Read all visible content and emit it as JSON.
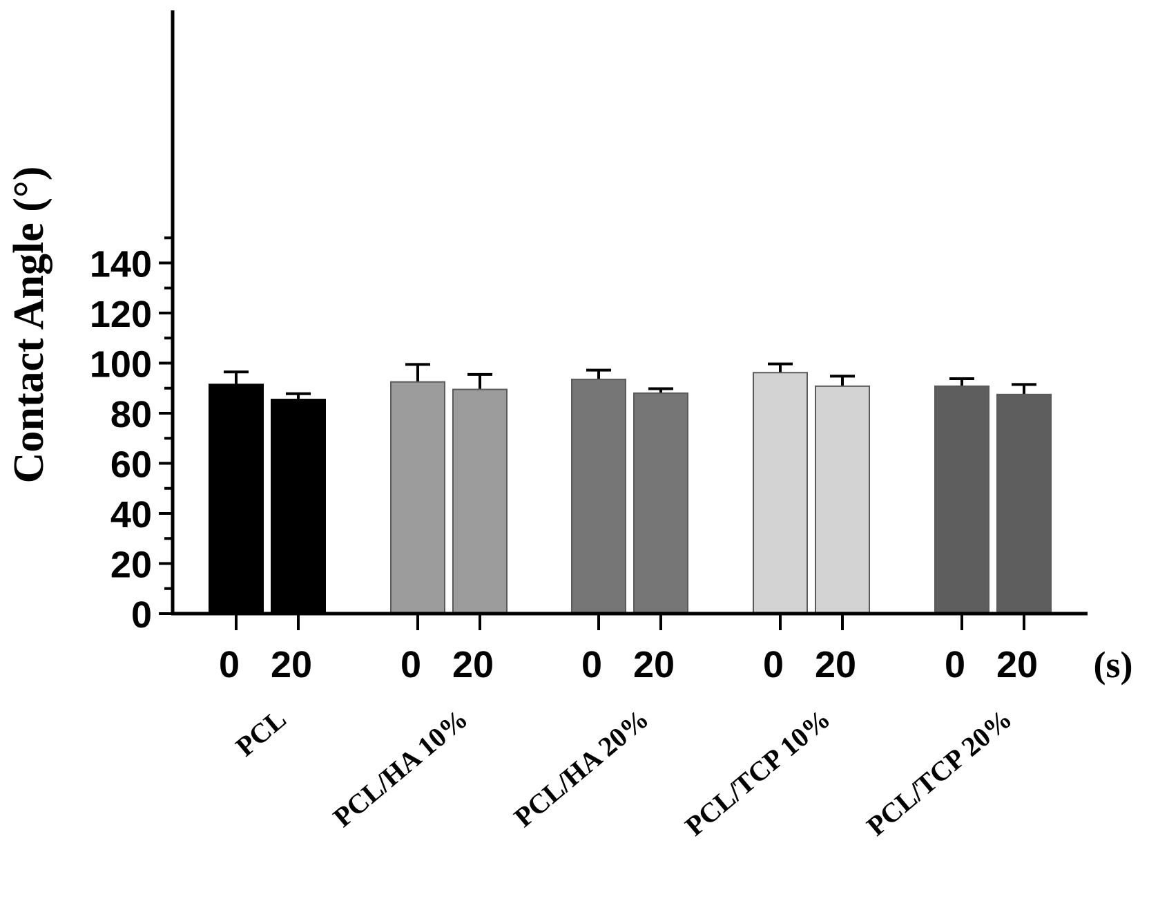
{
  "chart_data": {
    "type": "bar",
    "ylabel": "Contact Angle (°)",
    "x_unit_label": "(s)",
    "ylim": [
      0,
      150
    ],
    "yticks": [
      0,
      20,
      40,
      60,
      80,
      100,
      120,
      140
    ],
    "time_labels": [
      "0",
      "20"
    ],
    "groups": [
      {
        "name": "PCL",
        "color": "#000000",
        "bars": [
          {
            "time": "0",
            "value": 91.5,
            "error": 5.0
          },
          {
            "time": "20",
            "value": 85.5,
            "error": 2.3
          }
        ]
      },
      {
        "name": "PCL/HA 10%",
        "color": "#9c9c9c",
        "bars": [
          {
            "time": "0",
            "value": 92.5,
            "error": 7.0
          },
          {
            "time": "20",
            "value": 89.5,
            "error": 6.0
          }
        ]
      },
      {
        "name": "PCL/HA 20%",
        "color": "#767676",
        "bars": [
          {
            "time": "0",
            "value": 93.5,
            "error": 3.7
          },
          {
            "time": "20",
            "value": 88.0,
            "error": 1.8
          }
        ]
      },
      {
        "name": "PCL/TCP 10%",
        "color": "#d3d3d3",
        "bars": [
          {
            "time": "0",
            "value": 96.2,
            "error": 3.5
          },
          {
            "time": "20",
            "value": 90.8,
            "error": 4.0
          }
        ]
      },
      {
        "name": "PCL/TCP 20%",
        "color": "#5e5e5e",
        "bars": [
          {
            "time": "0",
            "value": 90.8,
            "error": 3.0
          },
          {
            "time": "20",
            "value": 87.5,
            "error": 4.0
          }
        ]
      }
    ]
  }
}
